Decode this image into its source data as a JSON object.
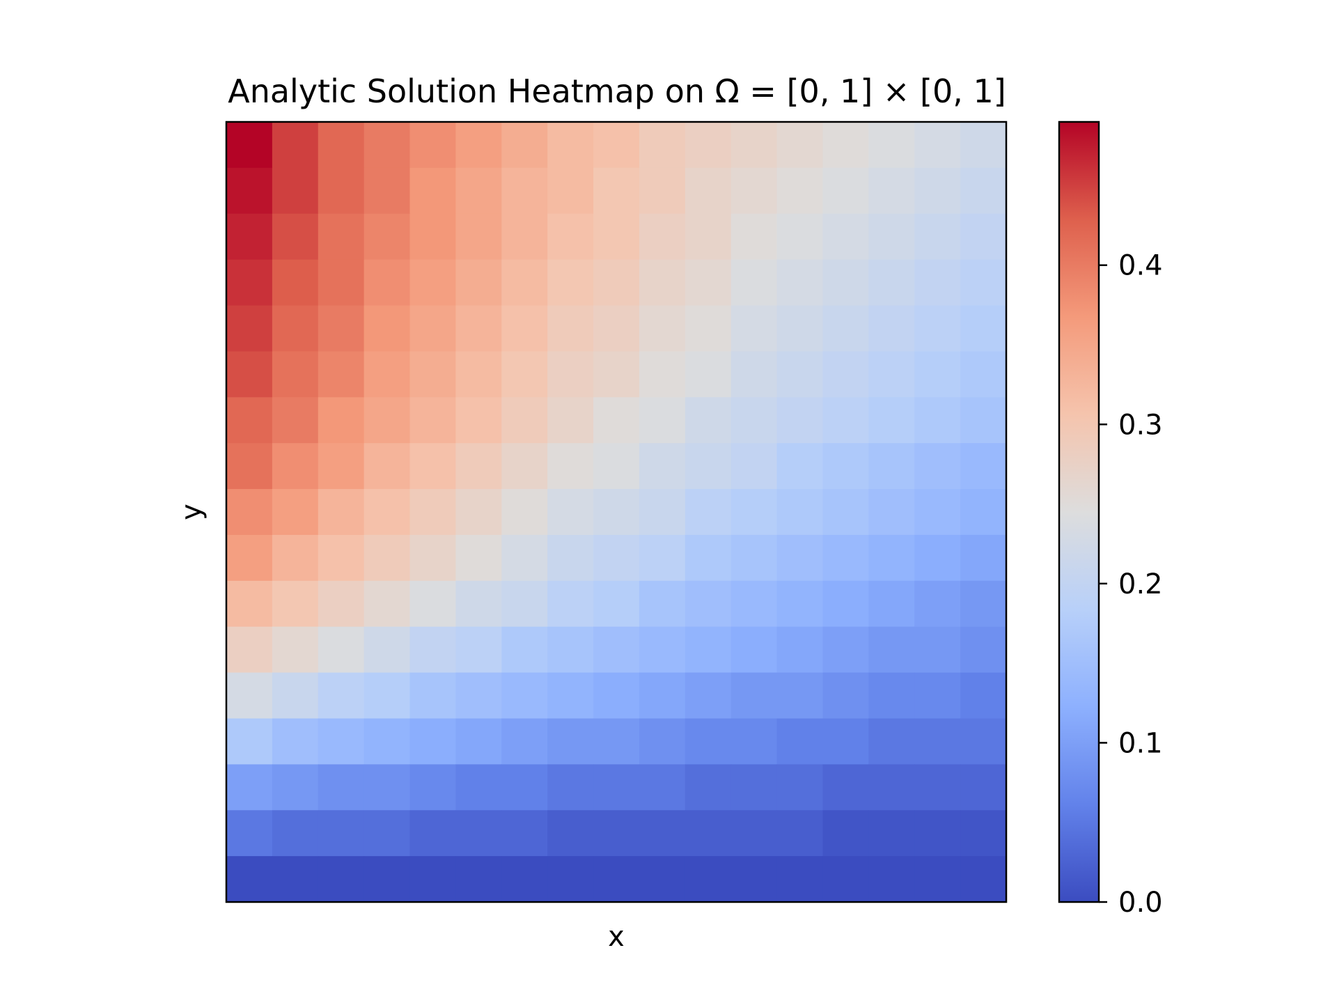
{
  "chart_data": {
    "type": "heatmap",
    "title": "Analytic Solution Heatmap on Ω = [0, 1] × [0, 1]",
    "xlabel": "x",
    "ylabel": "y",
    "rows_order": "top-to-bottom",
    "grid": false,
    "colormap": "coolwarm",
    "colorbar": {
      "min": 0.0,
      "max": 0.49,
      "placement": "right",
      "ticks": [
        0.0,
        0.1,
        0.2,
        0.3,
        0.4
      ],
      "tick_labels": [
        "0.0",
        "0.1",
        "0.2",
        "0.3",
        "0.4"
      ]
    },
    "values": [
      [
        0.49,
        0.45,
        0.42,
        0.4,
        0.38,
        0.36,
        0.34,
        0.32,
        0.31,
        0.29,
        0.28,
        0.27,
        0.26,
        0.25,
        0.24,
        0.23,
        0.22
      ],
      [
        0.48,
        0.45,
        0.42,
        0.4,
        0.37,
        0.35,
        0.33,
        0.32,
        0.3,
        0.29,
        0.27,
        0.26,
        0.25,
        0.24,
        0.23,
        0.22,
        0.21
      ],
      [
        0.47,
        0.44,
        0.41,
        0.39,
        0.37,
        0.35,
        0.33,
        0.31,
        0.3,
        0.28,
        0.27,
        0.25,
        0.24,
        0.23,
        0.22,
        0.21,
        0.2
      ],
      [
        0.46,
        0.43,
        0.41,
        0.38,
        0.36,
        0.34,
        0.32,
        0.3,
        0.29,
        0.27,
        0.26,
        0.24,
        0.23,
        0.22,
        0.21,
        0.2,
        0.19
      ],
      [
        0.45,
        0.42,
        0.4,
        0.37,
        0.35,
        0.33,
        0.31,
        0.29,
        0.28,
        0.26,
        0.25,
        0.23,
        0.22,
        0.21,
        0.2,
        0.19,
        0.18
      ],
      [
        0.44,
        0.41,
        0.39,
        0.36,
        0.34,
        0.32,
        0.3,
        0.28,
        0.27,
        0.25,
        0.24,
        0.22,
        0.21,
        0.2,
        0.19,
        0.18,
        0.17
      ],
      [
        0.42,
        0.4,
        0.37,
        0.35,
        0.33,
        0.31,
        0.29,
        0.27,
        0.25,
        0.24,
        0.22,
        0.21,
        0.2,
        0.19,
        0.18,
        0.17,
        0.16
      ],
      [
        0.41,
        0.38,
        0.36,
        0.33,
        0.31,
        0.29,
        0.27,
        0.25,
        0.24,
        0.22,
        0.21,
        0.2,
        0.18,
        0.17,
        0.16,
        0.15,
        0.14
      ],
      [
        0.38,
        0.36,
        0.33,
        0.31,
        0.29,
        0.27,
        0.25,
        0.23,
        0.22,
        0.21,
        0.19,
        0.18,
        0.17,
        0.16,
        0.15,
        0.14,
        0.13
      ],
      [
        0.36,
        0.33,
        0.31,
        0.29,
        0.27,
        0.25,
        0.23,
        0.21,
        0.2,
        0.19,
        0.17,
        0.16,
        0.15,
        0.14,
        0.13,
        0.12,
        0.11
      ],
      [
        0.32,
        0.3,
        0.28,
        0.26,
        0.24,
        0.22,
        0.21,
        0.19,
        0.18,
        0.16,
        0.15,
        0.14,
        0.13,
        0.12,
        0.11,
        0.1,
        0.09
      ],
      [
        0.28,
        0.26,
        0.24,
        0.22,
        0.2,
        0.19,
        0.17,
        0.16,
        0.15,
        0.14,
        0.13,
        0.12,
        0.11,
        0.1,
        0.09,
        0.09,
        0.08
      ],
      [
        0.23,
        0.21,
        0.19,
        0.18,
        0.16,
        0.15,
        0.14,
        0.13,
        0.12,
        0.11,
        0.1,
        0.09,
        0.09,
        0.08,
        0.07,
        0.07,
        0.06
      ],
      [
        0.17,
        0.15,
        0.14,
        0.13,
        0.12,
        0.11,
        0.1,
        0.09,
        0.09,
        0.08,
        0.07,
        0.07,
        0.06,
        0.06,
        0.05,
        0.05,
        0.05
      ],
      [
        0.1,
        0.09,
        0.08,
        0.08,
        0.07,
        0.06,
        0.06,
        0.05,
        0.05,
        0.05,
        0.04,
        0.04,
        0.04,
        0.03,
        0.03,
        0.03,
        0.03
      ],
      [
        0.05,
        0.04,
        0.04,
        0.04,
        0.03,
        0.03,
        0.03,
        0.02,
        0.02,
        0.02,
        0.02,
        0.02,
        0.02,
        0.01,
        0.01,
        0.01,
        0.01
      ],
      [
        0.0,
        0.0,
        0.0,
        0.0,
        0.0,
        0.0,
        0.0,
        0.0,
        0.0,
        0.0,
        0.0,
        0.0,
        0.0,
        0.0,
        0.0,
        0.0,
        0.0
      ]
    ]
  }
}
